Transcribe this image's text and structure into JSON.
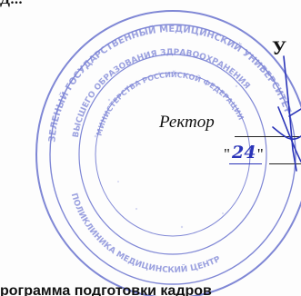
{
  "document": {
    "top_line": "Д...",
    "approval_word": "У",
    "signatory_label": "Ректор",
    "date_day": "24",
    "bottom_line": "рограмма подготовки кадров"
  },
  "stamp": {
    "ink_color": "#6a73cf",
    "outer_ring_text": "ЗЕЛЕНЫЙ ГОСУДАРСТВЕННЫЙ МЕДИЦИНСКИЙ УНИВЕРСИТЕТ",
    "inner_ring_text": "ВЫСШЕГО ОБРАЗОВАНИЯ ЗДРАВООХРАНЕНИЯ"
  },
  "signature_color": "#2a34b8"
}
